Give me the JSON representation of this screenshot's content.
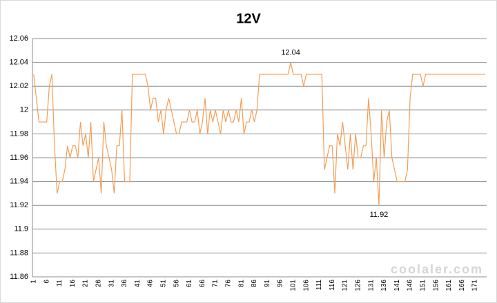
{
  "chart_data": {
    "type": "line",
    "title": "12V",
    "categories": [
      1,
      null,
      null,
      null,
      null,
      6,
      null,
      null,
      null,
      null,
      11,
      null,
      null,
      null,
      null,
      16,
      null,
      null,
      null,
      null,
      21,
      null,
      null,
      null,
      null,
      26,
      null,
      null,
      null,
      null,
      31,
      null,
      null,
      null,
      null,
      36,
      null,
      null,
      null,
      null,
      41,
      null,
      null,
      null,
      null,
      46,
      null,
      null,
      null,
      null,
      51,
      null,
      null,
      null,
      null,
      56,
      null,
      null,
      null,
      null,
      61,
      null,
      null,
      null,
      null,
      66,
      null,
      null,
      null,
      null,
      71,
      null,
      null,
      null,
      null,
      76,
      null,
      null,
      null,
      null,
      81,
      null,
      null,
      null,
      null,
      86,
      null,
      null,
      null,
      null,
      91,
      null,
      null,
      null,
      null,
      96,
      null,
      null,
      null,
      null,
      101,
      null,
      null,
      null,
      null,
      106,
      null,
      null,
      null,
      null,
      111,
      null,
      null,
      null,
      null,
      116,
      null,
      null,
      null,
      null,
      121,
      null,
      null,
      null,
      null,
      126,
      null,
      null,
      null,
      null,
      131,
      null,
      null,
      null,
      null,
      136,
      null,
      null,
      null,
      null,
      141,
      null,
      null,
      null,
      null,
      146,
      null,
      null,
      null,
      null,
      151,
      null,
      null,
      null,
      null,
      156,
      null,
      null,
      null,
      null,
      161,
      null,
      null,
      null,
      null,
      166,
      null,
      null,
      null,
      null,
      171,
      null,
      null,
      null,
      null
    ],
    "series": [
      {
        "color": "#f59d56",
        "values": [
          12.03,
          12.01,
          11.99,
          11.99,
          11.99,
          11.99,
          12.02,
          12.03,
          11.97,
          11.93,
          11.94,
          11.94,
          11.95,
          11.97,
          11.96,
          11.97,
          11.97,
          11.96,
          11.99,
          11.97,
          11.98,
          11.96,
          11.99,
          11.94,
          11.95,
          11.96,
          11.93,
          11.99,
          11.97,
          11.96,
          11.95,
          11.93,
          11.97,
          11.97,
          12.0,
          11.94,
          11.94,
          11.94,
          12.03,
          12.03,
          12.03,
          12.03,
          12.03,
          12.03,
          12.02,
          12.0,
          12.01,
          12.01,
          11.99,
          12.0,
          11.98,
          12.0,
          12.01,
          12.0,
          11.99,
          11.98,
          11.98,
          11.99,
          11.99,
          11.99,
          12.0,
          11.99,
          11.99,
          12.0,
          11.98,
          11.99,
          12.01,
          11.98,
          12.0,
          11.99,
          12.0,
          11.99,
          11.98,
          12.0,
          11.99,
          12.0,
          11.99,
          11.99,
          12.0,
          11.99,
          12.01,
          11.98,
          11.99,
          11.99,
          12.0,
          11.99,
          12.0,
          12.03,
          12.03,
          12.03,
          12.03,
          12.03,
          12.03,
          12.03,
          12.03,
          12.03,
          12.03,
          12.03,
          12.03,
          12.04,
          12.03,
          12.03,
          12.03,
          12.03,
          12.02,
          12.03,
          12.03,
          12.03,
          12.03,
          12.03,
          12.03,
          12.03,
          11.95,
          11.96,
          11.97,
          11.97,
          11.93,
          11.98,
          11.97,
          11.99,
          11.97,
          11.95,
          11.98,
          11.95,
          11.98,
          11.96,
          11.96,
          11.97,
          11.97,
          12.01,
          11.98,
          11.94,
          11.96,
          11.92,
          12.0,
          11.96,
          11.99,
          12.0,
          11.96,
          11.95,
          11.94,
          11.94,
          11.94,
          11.94,
          11.95,
          12.01,
          12.03,
          12.03,
          12.03,
          12.03,
          12.02,
          12.03,
          12.03,
          12.03,
          12.03,
          12.03,
          12.03,
          12.03,
          12.03,
          12.03,
          12.03,
          12.03,
          12.03,
          12.03,
          12.03,
          12.03,
          12.03,
          12.03,
          12.03,
          12.03,
          12.03,
          12.03,
          12.03,
          12.03,
          12.03
        ]
      }
    ],
    "annotations": [
      {
        "text": "12.04",
        "x": 100,
        "y": 12.04
      },
      {
        "text": "11.92",
        "x": 134,
        "y": 11.92
      }
    ],
    "ylim": [
      11.86,
      12.06
    ],
    "yticks": [
      11.86,
      11.88,
      11.9,
      11.92,
      11.94,
      11.96,
      11.98,
      12,
      12.02,
      12.04,
      12.06
    ],
    "grid": true,
    "watermark": "coolaler.com"
  }
}
